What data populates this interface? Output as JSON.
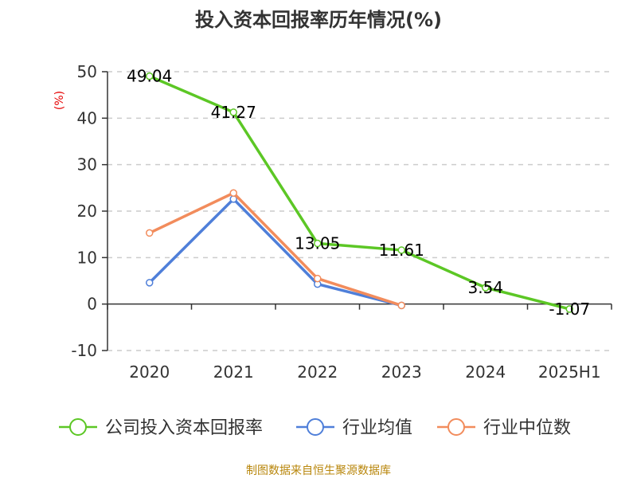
{
  "chart_data": {
    "type": "line",
    "title": "投入资本回报率历年情况(%)",
    "ylabel": "(%)",
    "categories": [
      "2020",
      "2021",
      "2022",
      "2023",
      "2024",
      "2025H1"
    ],
    "ylim": [
      -10,
      50
    ],
    "yticks": [
      -10,
      0,
      10,
      20,
      30,
      40,
      50
    ],
    "grid": true,
    "legend_position": "bottom",
    "series": [
      {
        "name": "公司投入资本回报率",
        "color": "#5cc725",
        "values": [
          49.04,
          41.27,
          13.05,
          11.61,
          3.54,
          -1.07
        ],
        "labels": [
          "49.04",
          "41.27",
          "13.05",
          "11.61",
          "3.54",
          "-1.07"
        ]
      },
      {
        "name": "行业均值",
        "color": "#4f7fd9",
        "values": [
          4.6,
          22.6,
          4.3,
          -0.3,
          null,
          null
        ],
        "labels": []
      },
      {
        "name": "行业中位数",
        "color": "#f28c5c",
        "values": [
          15.3,
          23.9,
          5.5,
          -0.3,
          null,
          null
        ],
        "labels": []
      }
    ]
  },
  "source": "制图数据来自恒生聚源数据库"
}
